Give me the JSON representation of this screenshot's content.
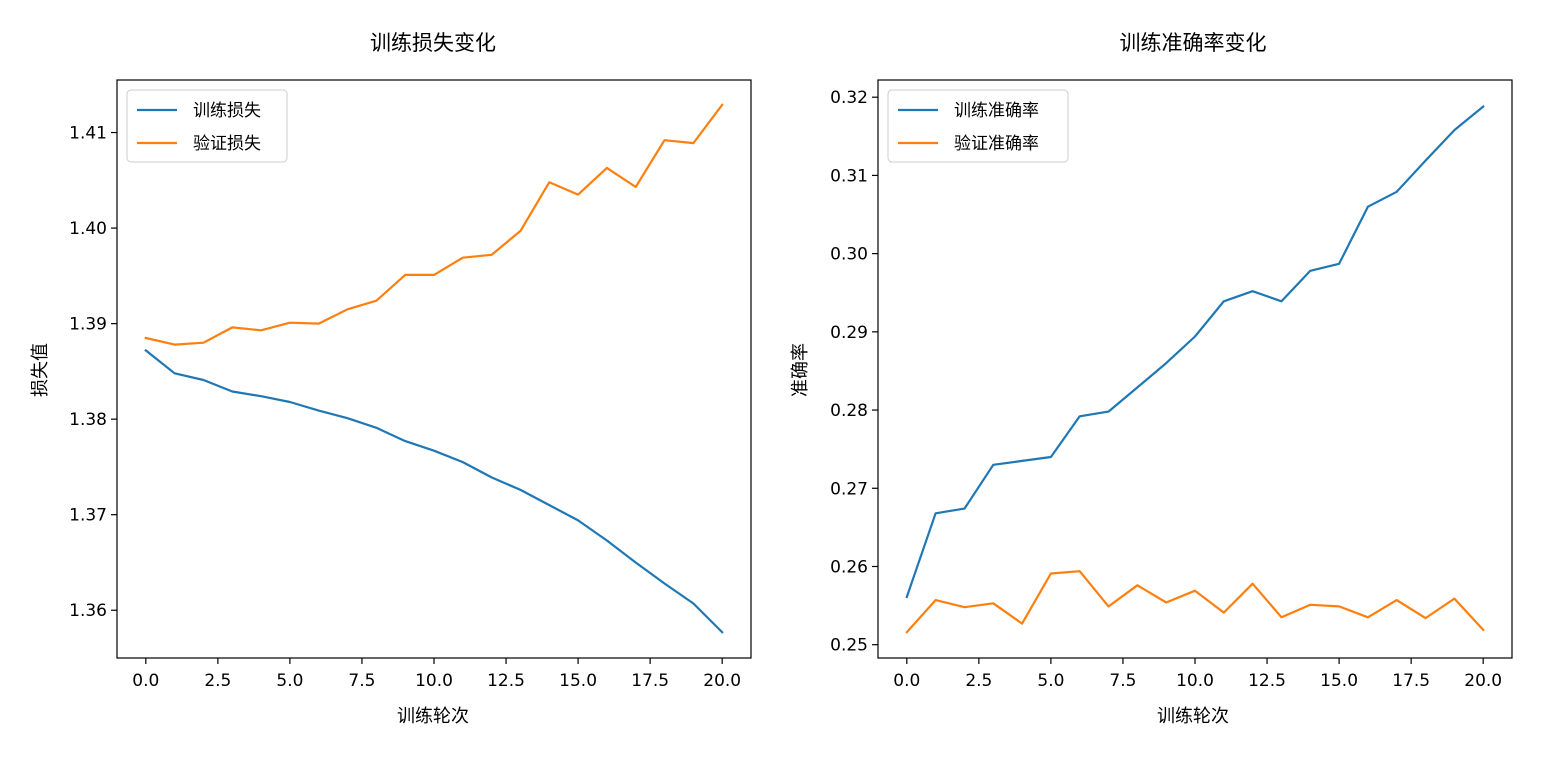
{
  "chart_data": [
    {
      "type": "line",
      "title": "训练损失变化",
      "xlabel": "训练轮次",
      "ylabel": "损失值",
      "xlim": [
        -1.0,
        21.0
      ],
      "ylim": [
        1.355,
        1.4155
      ],
      "xticks": [
        0.0,
        2.5,
        5.0,
        7.5,
        10.0,
        12.5,
        15.0,
        17.5,
        20.0
      ],
      "xtick_labels": [
        "0.0",
        "2.5",
        "5.0",
        "7.5",
        "10.0",
        "12.5",
        "15.0",
        "17.5",
        "20.0"
      ],
      "yticks": [
        1.36,
        1.37,
        1.38,
        1.39,
        1.4,
        1.41
      ],
      "ytick_labels": [
        "1.36",
        "1.37",
        "1.38",
        "1.39",
        "1.40",
        "1.41"
      ],
      "grid": false,
      "legend_position": "top-left",
      "x": [
        0,
        1,
        2,
        3,
        4,
        5,
        6,
        7,
        8,
        9,
        10,
        11,
        12,
        13,
        14,
        15,
        16,
        17,
        18,
        19,
        20
      ],
      "series": [
        {
          "name": "训练损失",
          "color": "#1f77b4",
          "values": [
            1.3872,
            1.3848,
            1.3841,
            1.3829,
            1.3824,
            1.3818,
            1.3809,
            1.3801,
            1.3791,
            1.3777,
            1.3767,
            1.3755,
            1.3739,
            1.3726,
            1.371,
            1.3694,
            1.3673,
            1.365,
            1.3628,
            1.3607,
            1.3577
          ]
        },
        {
          "name": "验证损失",
          "color": "#ff7f0e",
          "values": [
            1.3885,
            1.3878,
            1.388,
            1.3896,
            1.3893,
            1.3901,
            1.39,
            1.3915,
            1.3924,
            1.3951,
            1.3951,
            1.3969,
            1.3972,
            1.3997,
            1.4048,
            1.4035,
            1.4063,
            1.4043,
            1.4092,
            1.4089,
            1.4129
          ]
        }
      ]
    },
    {
      "type": "line",
      "title": "训练准确率变化",
      "xlabel": "训练轮次",
      "ylabel": "准确率",
      "xlim": [
        -1.0,
        21.0
      ],
      "ylim": [
        0.2483,
        0.3222
      ],
      "xticks": [
        0.0,
        2.5,
        5.0,
        7.5,
        10.0,
        12.5,
        15.0,
        17.5,
        20.0
      ],
      "xtick_labels": [
        "0.0",
        "2.5",
        "5.0",
        "7.5",
        "10.0",
        "12.5",
        "15.0",
        "17.5",
        "20.0"
      ],
      "yticks": [
        0.25,
        0.26,
        0.27,
        0.28,
        0.29,
        0.3,
        0.31,
        0.32
      ],
      "ytick_labels": [
        "0.25",
        "0.26",
        "0.27",
        "0.28",
        "0.29",
        "0.30",
        "0.31",
        "0.32"
      ],
      "grid": false,
      "legend_position": "top-left",
      "x": [
        0,
        1,
        2,
        3,
        4,
        5,
        6,
        7,
        8,
        9,
        10,
        11,
        12,
        13,
        14,
        15,
        16,
        17,
        18,
        19,
        20
      ],
      "series": [
        {
          "name": "训练准确率",
          "color": "#1f77b4",
          "values": [
            0.2561,
            0.2668,
            0.2674,
            0.273,
            0.2735,
            0.274,
            0.2792,
            0.2798,
            0.2829,
            0.286,
            0.2894,
            0.2939,
            0.2952,
            0.2939,
            0.2978,
            0.2987,
            0.306,
            0.3079,
            0.3119,
            0.3158,
            0.3188
          ]
        },
        {
          "name": "验证准确率",
          "color": "#ff7f0e",
          "values": [
            0.2516,
            0.2557,
            0.2548,
            0.2553,
            0.2527,
            0.2591,
            0.2594,
            0.2549,
            0.2576,
            0.2554,
            0.2569,
            0.2541,
            0.2578,
            0.2535,
            0.2551,
            0.2549,
            0.2535,
            0.2557,
            0.2534,
            0.2559,
            0.2519
          ]
        }
      ]
    }
  ]
}
